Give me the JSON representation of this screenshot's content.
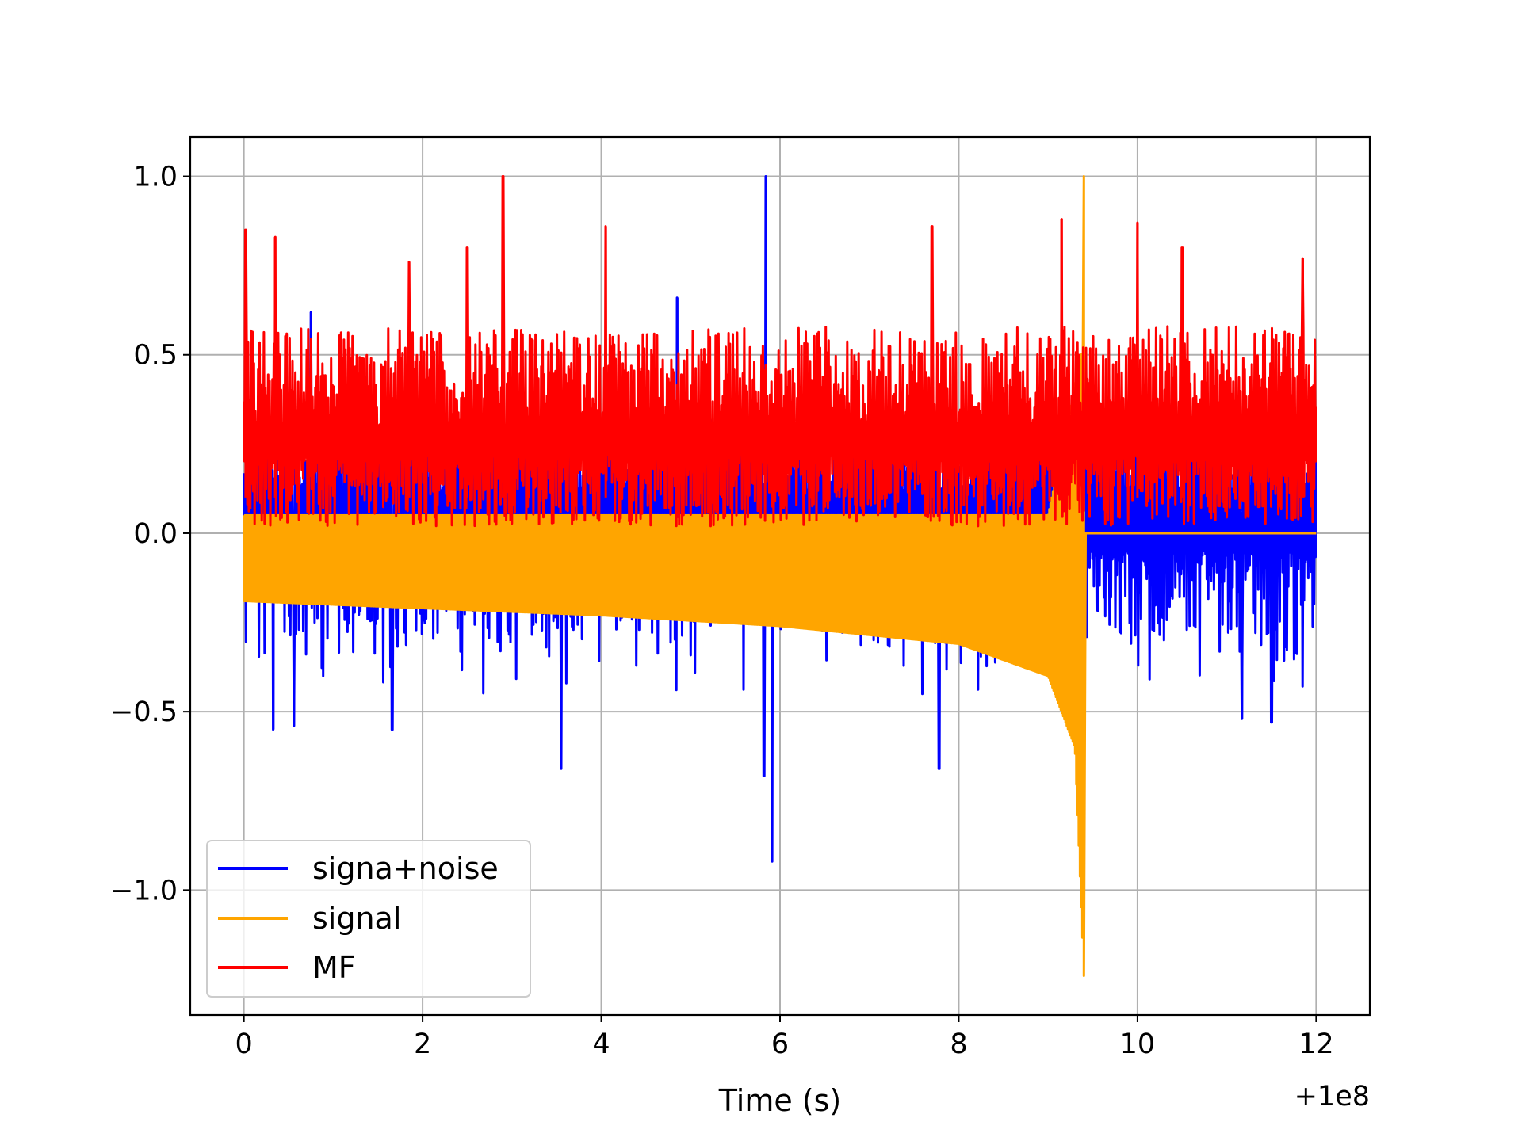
{
  "chart_data": {
    "type": "line",
    "title": "",
    "xlabel": "Time (s)",
    "ylabel": "",
    "x_offset_label": "+1e8",
    "xlim": [
      -0.6,
      12.6
    ],
    "ylim": [
      -1.35,
      1.11
    ],
    "x_ticks": [
      0,
      2,
      4,
      6,
      8,
      10,
      12
    ],
    "x_tick_labels": [
      "0",
      "2",
      "4",
      "6",
      "8",
      "10",
      "12"
    ],
    "y_ticks": [
      -1.0,
      -0.5,
      0.0,
      0.5,
      1.0
    ],
    "y_tick_labels": [
      "−1.0",
      "−0.5",
      "0.0",
      "0.5",
      "1.0"
    ],
    "grid": true,
    "legend_position": "lower-left",
    "x_range": [
      0,
      12
    ],
    "series": [
      {
        "name": "signa+noise",
        "color": "#0000ff",
        "description": "broadband noise centered near 0; baseline up to about 0.3, minima mostly -0.2 to -0.55",
        "peaks": [
          {
            "x": 0.33,
            "y": -0.55
          },
          {
            "x": 0.56,
            "y": -0.54
          },
          {
            "x": 0.75,
            "y": 0.62
          },
          {
            "x": 1.66,
            "y": -0.55
          },
          {
            "x": 3.55,
            "y": -0.66
          },
          {
            "x": 4.85,
            "y": 0.66
          },
          {
            "x": 5.84,
            "y": 1.0
          },
          {
            "x": 5.91,
            "y": -0.92
          },
          {
            "x": 5.82,
            "y": -0.68
          },
          {
            "x": 7.78,
            "y": -0.66
          },
          {
            "x": 11.17,
            "y": -0.52
          },
          {
            "x": 11.5,
            "y": -0.53
          }
        ]
      },
      {
        "name": "signal",
        "color": "#ffa500",
        "description": "chirp: oscillation whose negative envelope grows from -0.19 to -1.24 at t=9.4, zero after",
        "envelope_points": [
          {
            "x": 0.0,
            "y": -0.19
          },
          {
            "x": 2.0,
            "y": -0.21
          },
          {
            "x": 4.0,
            "y": -0.23
          },
          {
            "x": 6.0,
            "y": -0.26
          },
          {
            "x": 8.0,
            "y": -0.31
          },
          {
            "x": 9.0,
            "y": -0.4
          },
          {
            "x": 9.3,
            "y": -0.6
          },
          {
            "x": 9.4,
            "y": -1.24
          }
        ],
        "positive_peak": {
          "x": 9.4,
          "y": 1.0
        },
        "end_of_signal_x": 9.42
      },
      {
        "name": "MF",
        "color": "#ff0000",
        "description": "matched-filter output, positive, mostly 0.05 to 0.6",
        "peaks": [
          {
            "x": 0.02,
            "y": 0.85
          },
          {
            "x": 0.35,
            "y": 0.83
          },
          {
            "x": 1.85,
            "y": 0.76
          },
          {
            "x": 2.5,
            "y": 0.8
          },
          {
            "x": 2.9,
            "y": 1.0
          },
          {
            "x": 4.05,
            "y": 0.86
          },
          {
            "x": 7.7,
            "y": 0.86
          },
          {
            "x": 9.15,
            "y": 0.88
          },
          {
            "x": 10.0,
            "y": 0.87
          },
          {
            "x": 10.5,
            "y": 0.8
          },
          {
            "x": 11.85,
            "y": 0.77
          }
        ]
      }
    ]
  }
}
